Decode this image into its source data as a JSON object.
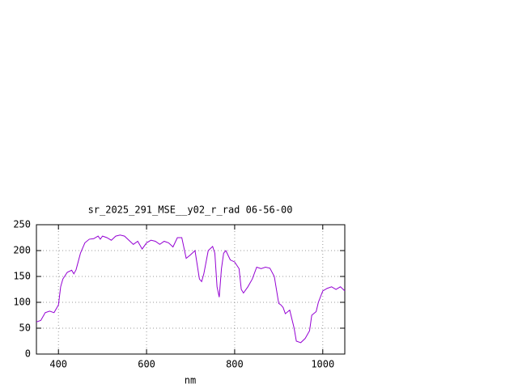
{
  "chart_data": {
    "type": "line",
    "title": "sr_2025_291_MSE__y02_r_rad 06-56-00",
    "x_label": "nm",
    "x": [
      350,
      360,
      370,
      380,
      390,
      400,
      405,
      410,
      420,
      430,
      435,
      440,
      450,
      460,
      470,
      480,
      490,
      495,
      500,
      510,
      520,
      530,
      540,
      550,
      560,
      570,
      580,
      590,
      600,
      610,
      620,
      630,
      640,
      650,
      660,
      670,
      680,
      690,
      700,
      710,
      720,
      725,
      730,
      740,
      750,
      755,
      760,
      765,
      770,
      775,
      780,
      790,
      800,
      810,
      815,
      820,
      830,
      840,
      850,
      860,
      870,
      880,
      890,
      900,
      905,
      910,
      915,
      925,
      935,
      940,
      950,
      960,
      970,
      975,
      985,
      990,
      1000,
      1010,
      1020,
      1030,
      1040,
      1050
    ],
    "series": [
      {
        "color": "#9400d3",
        "values": [
          62,
          65,
          80,
          83,
          80,
          95,
          130,
          145,
          158,
          162,
          155,
          163,
          195,
          215,
          222,
          223,
          228,
          222,
          228,
          225,
          220,
          228,
          230,
          228,
          220,
          212,
          218,
          203,
          215,
          220,
          218,
          212,
          218,
          215,
          207,
          225,
          225,
          185,
          192,
          200,
          145,
          140,
          155,
          200,
          208,
          195,
          130,
          110,
          165,
          195,
          200,
          182,
          178,
          165,
          125,
          118,
          130,
          145,
          168,
          165,
          168,
          166,
          150,
          98,
          95,
          90,
          78,
          85,
          50,
          25,
          22,
          30,
          45,
          75,
          82,
          100,
          122,
          127,
          130,
          125,
          130,
          122
        ]
      }
    ],
    "xlim": [
      350,
      1050
    ],
    "ylim": [
      0,
      250
    ],
    "xticks": [
      400,
      600,
      800,
      1000
    ],
    "yticks": [
      0,
      50,
      100,
      150,
      200,
      250
    ],
    "grid": true
  }
}
